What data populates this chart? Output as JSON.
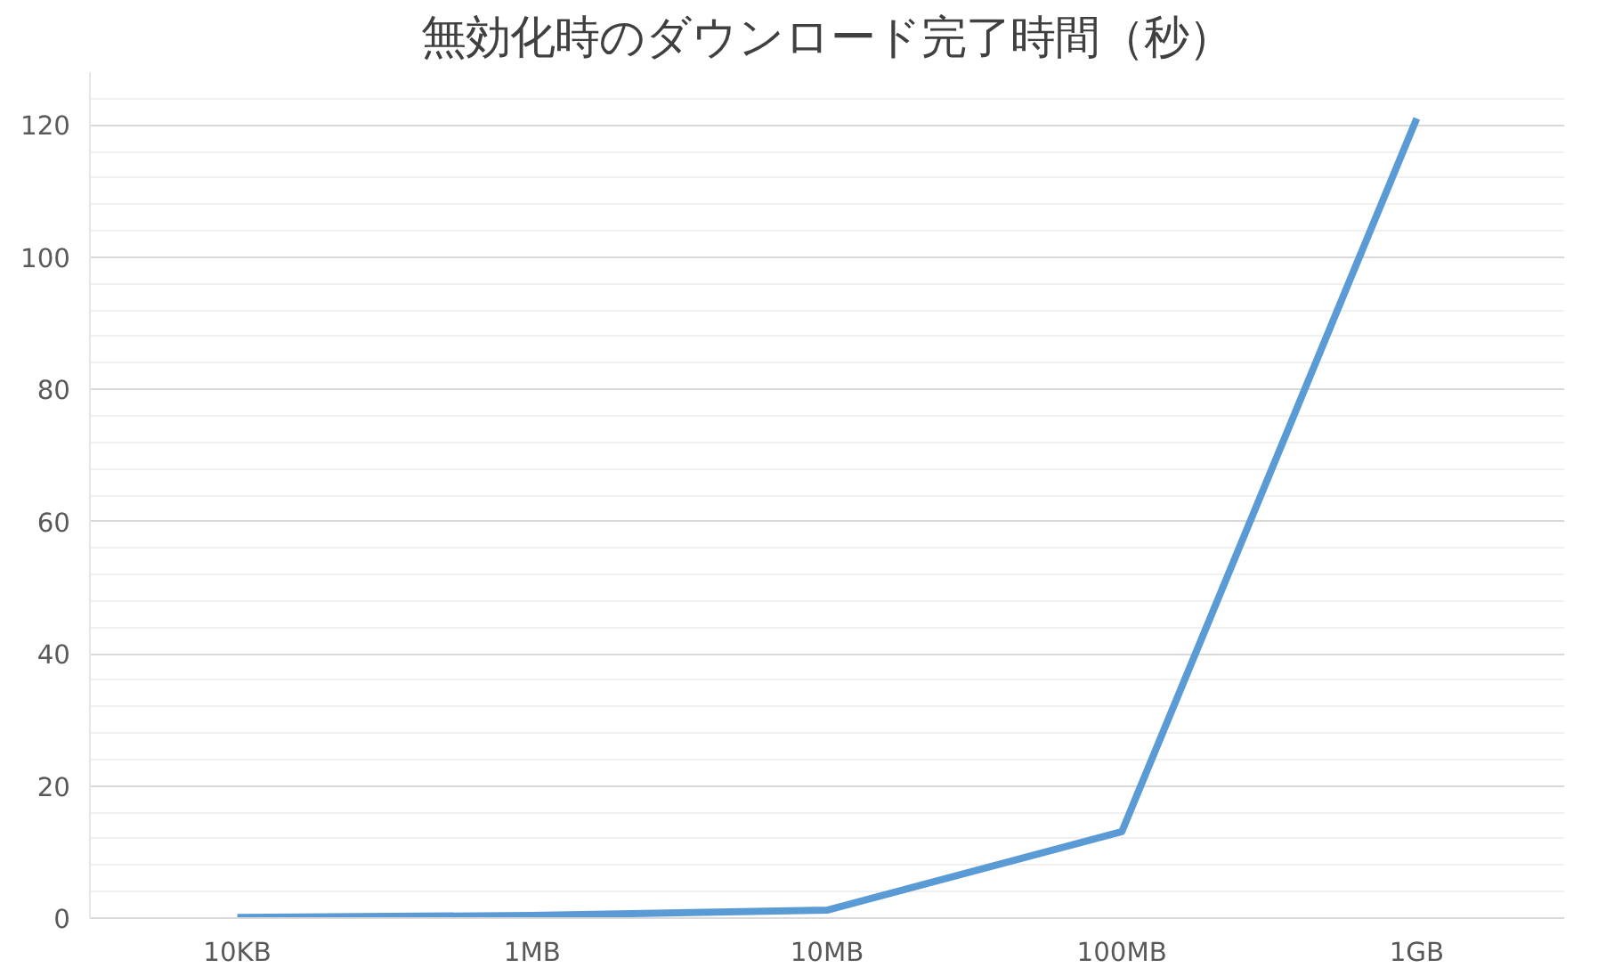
{
  "chart_data": {
    "type": "line",
    "title": "無効化時のダウンロード完了時間（秒）",
    "categories": [
      "10KB",
      "1MB",
      "10MB",
      "100MB",
      "1GB"
    ],
    "series": [
      {
        "color": "#5b9bd5",
        "values": [
          0.1,
          0.4,
          1.2,
          13.1,
          121
        ]
      }
    ],
    "ylim": [
      0,
      128
    ],
    "yticks": [
      0,
      20,
      40,
      60,
      80,
      100,
      120
    ],
    "grid": "y",
    "marker": "none",
    "line_style": "solid"
  }
}
